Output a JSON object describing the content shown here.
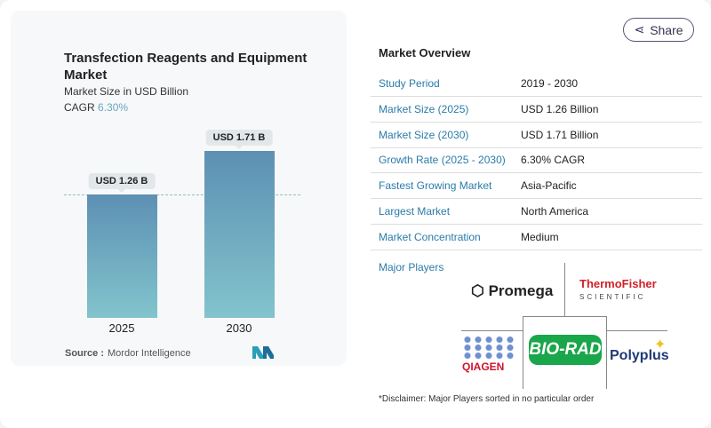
{
  "share_label": "Share",
  "chart_card": {
    "title": "Transfection Reagents and Equipment Market",
    "subtitle": "Market Size in USD Billion",
    "cagr_label": "CAGR",
    "cagr_value": "6.30%",
    "source_label": "Source :",
    "source_value": "Mordor Intelligence"
  },
  "chart_data": {
    "type": "bar",
    "categories": [
      "2025",
      "2030"
    ],
    "values": [
      1.26,
      1.71
    ],
    "data_labels": [
      "USD 1.26 B",
      "USD 1.71 B"
    ],
    "title": "Transfection Reagents and Equipment Market",
    "ylabel": "Market Size in USD Billion",
    "colors": [
      "#5d90b4",
      "#82c4cc"
    ]
  },
  "overview": {
    "heading": "Market Overview",
    "rows": [
      {
        "key": "Study Period",
        "value": "2019 - 2030"
      },
      {
        "key": "Market Size (2025)",
        "value": "USD 1.26 Billion"
      },
      {
        "key": "Market Size (2030)",
        "value": "USD 1.71 Billion"
      },
      {
        "key": "Growth Rate (2025 - 2030)",
        "value": "6.30% CAGR"
      },
      {
        "key": "Fastest Growing Market",
        "value": "Asia-Pacific"
      },
      {
        "key": "Largest Market",
        "value": "North America"
      },
      {
        "key": "Market Concentration",
        "value": "Medium"
      }
    ]
  },
  "major_players": {
    "heading": "Major Players",
    "logos": [
      "Promega",
      "Thermo Fisher Scientific",
      "QIAGEN",
      "BIO-RAD",
      "Polyplus"
    ]
  },
  "disclaimer": "*Disclaimer: Major Players sorted in no particular order"
}
